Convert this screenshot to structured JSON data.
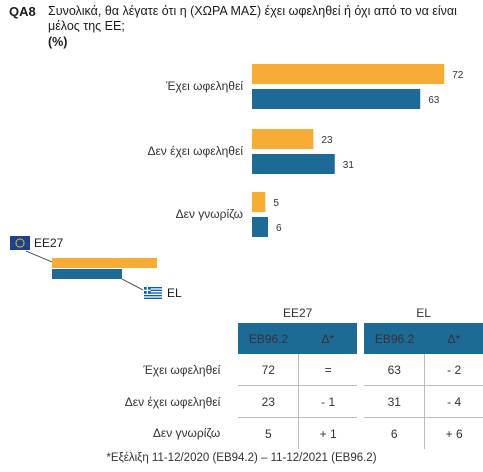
{
  "header": {
    "code": "QA8",
    "question": "Συνολικά, θα λέγατε ότι η (ΧΩΡΑ ΜΑΣ) έχει ωφεληθεί ή όχι από το να είναι μέλος της ΕΕ;",
    "unit": "(%)"
  },
  "chart_data": {
    "type": "bar",
    "orientation": "horizontal",
    "categories": [
      "Έχει ωφεληθεί",
      "Δεν έχει ωφεληθεί",
      "Δεν γνωρίζω"
    ],
    "series": [
      {
        "name": "EE27",
        "values": [
          72,
          23,
          5
        ],
        "color": "#f6ac35"
      },
      {
        "name": "EL",
        "values": [
          63,
          31,
          6
        ],
        "color": "#1e6a97"
      }
    ],
    "data_labels": true,
    "legend_placement": "bottom-left"
  },
  "table": {
    "groups": [
      "EE27",
      "EL"
    ],
    "subheaders": [
      "EB96.2",
      "Δ*",
      "EB96.2",
      "Δ*"
    ],
    "rows": [
      {
        "label": "Έχει ωφεληθεί",
        "cells": [
          "72",
          "=",
          "63",
          "- 2"
        ]
      },
      {
        "label": "Δεν έχει ωφεληθεί",
        "cells": [
          "23",
          "- 1",
          "31",
          "- 4"
        ]
      },
      {
        "label": "Δεν γνωρίζω",
        "cells": [
          "5",
          "+ 1",
          "6",
          "+ 6"
        ]
      }
    ]
  },
  "footnote": "*Εξέλιξη 11-12/2020 (EB94.2) – 11-12/2021 (EB96.2)"
}
